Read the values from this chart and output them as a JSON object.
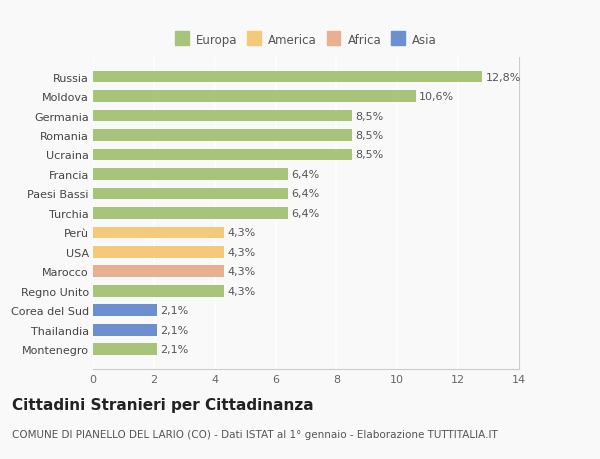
{
  "categories": [
    "Montenegro",
    "Thailandia",
    "Corea del Sud",
    "Regno Unito",
    "Marocco",
    "USA",
    "Perù",
    "Turchia",
    "Paesi Bassi",
    "Francia",
    "Ucraina",
    "Romania",
    "Germania",
    "Moldova",
    "Russia"
  ],
  "values": [
    2.1,
    2.1,
    2.1,
    4.3,
    4.3,
    4.3,
    4.3,
    6.4,
    6.4,
    6.4,
    8.5,
    8.5,
    8.5,
    10.6,
    12.8
  ],
  "labels": [
    "2,1%",
    "2,1%",
    "2,1%",
    "4,3%",
    "4,3%",
    "4,3%",
    "4,3%",
    "6,4%",
    "6,4%",
    "6,4%",
    "8,5%",
    "8,5%",
    "8,5%",
    "10,6%",
    "12,8%"
  ],
  "colors": [
    "#a8c47a",
    "#6b8fcf",
    "#6b8fcf",
    "#a8c47a",
    "#e8b090",
    "#f5c97a",
    "#f5c97a",
    "#a8c47a",
    "#a8c47a",
    "#a8c47a",
    "#a8c47a",
    "#a8c47a",
    "#a8c47a",
    "#a8c47a",
    "#a8c47a"
  ],
  "legend": [
    {
      "label": "Europa",
      "color": "#a8c47a"
    },
    {
      "label": "America",
      "color": "#f5c97a"
    },
    {
      "label": "Africa",
      "color": "#e8b090"
    },
    {
      "label": "Asia",
      "color": "#6b8fcf"
    }
  ],
  "xlim": [
    0,
    14
  ],
  "xticks": [
    0,
    2,
    4,
    6,
    8,
    10,
    12,
    14
  ],
  "title": "Cittadini Stranieri per Cittadinanza",
  "subtitle": "COMUNE DI PIANELLO DEL LARIO (CO) - Dati ISTAT al 1° gennaio - Elaborazione TUTTITALIA.IT",
  "background_color": "#f9f9f9",
  "bar_height": 0.6,
  "label_fontsize": 8,
  "tick_fontsize": 8,
  "title_fontsize": 11,
  "subtitle_fontsize": 7.5
}
